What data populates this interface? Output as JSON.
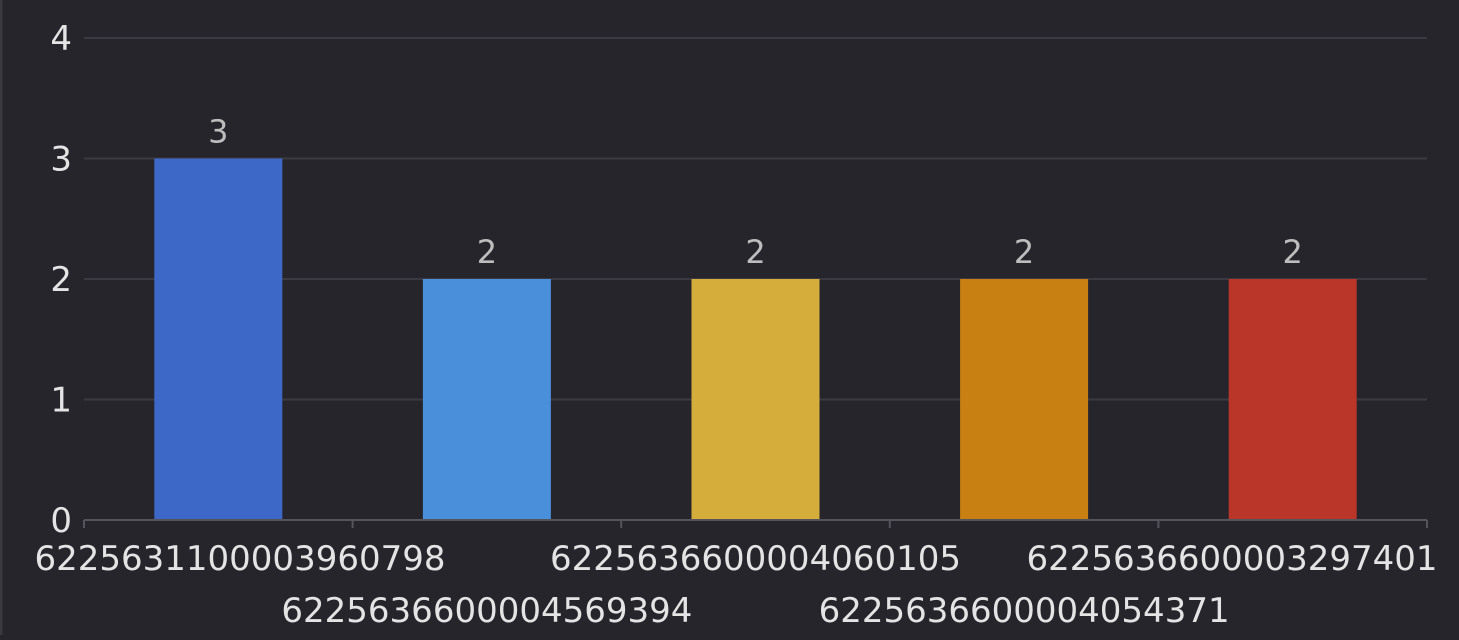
{
  "chart_data": {
    "type": "bar",
    "categories": [
      "6225631100003960798",
      "6225636600004569394",
      "6225636600004060105",
      "6225636600004054371",
      "6225636600003297401"
    ],
    "values": [
      3,
      2,
      2,
      2,
      2
    ],
    "colors": [
      "#3e68c7",
      "#4a8fd9",
      "#d4ad3b",
      "#c98012",
      "#ba3629"
    ],
    "ylim": [
      0,
      4
    ],
    "yticks": [
      "0",
      "1",
      "2",
      "3",
      "4"
    ],
    "data_labels": [
      "3",
      "2",
      "2",
      "2",
      "2"
    ],
    "grid": true,
    "title": "",
    "xlabel": "",
    "ylabel": ""
  }
}
